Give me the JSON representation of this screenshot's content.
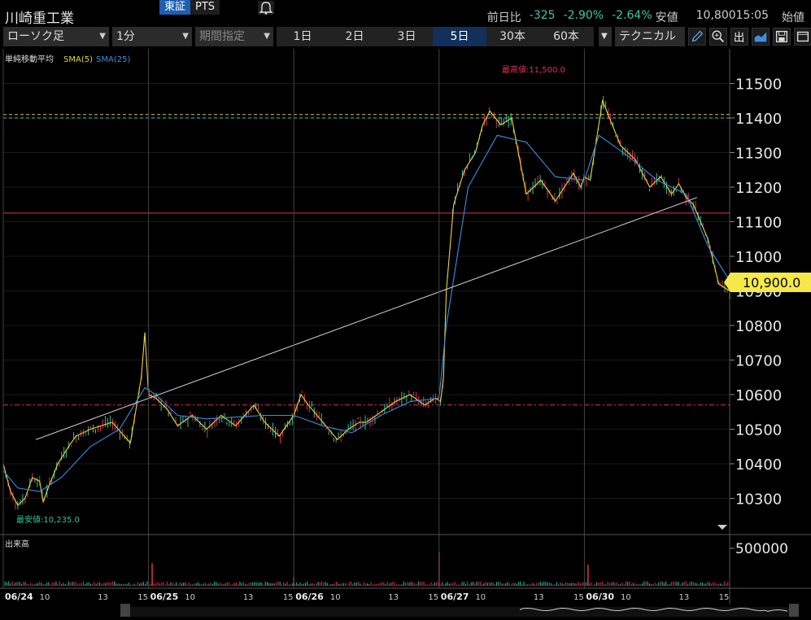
{
  "header": {
    "stock_name": "川崎重工業",
    "exchange_tabs": [
      "東証",
      "PTS"
    ],
    "active_exchange": "東証",
    "stats": {
      "change_label": "前日比",
      "change_value": "-325",
      "change_pct": "-2.90%",
      "change_pct2": "-2.64%",
      "low_label": "安値",
      "low_value": "10,800",
      "time": "15:05",
      "open_label": "始値"
    }
  },
  "toolbar": {
    "chart_type": "ローソク足",
    "interval": "1分",
    "period_select": "期間指定",
    "periods": [
      "1日",
      "2日",
      "3日",
      "5日",
      "30本",
      "60本"
    ],
    "active_period": "5日",
    "technical_label": "テクニカル",
    "icons": [
      "pen-icon",
      "zoom-icon",
      "output-icon",
      "chart-style-icon",
      "save-icon",
      "window-icon"
    ]
  },
  "indicator_legend": {
    "title": "単純移動平均",
    "sma5": "SMA(5)",
    "sma25": "SMA(25)"
  },
  "colors": {
    "sma5": "#e8d53a",
    "sma25": "#3b8fe0",
    "up": "#2ec4a0",
    "down": "#e0305a",
    "price_tag": "#f5e94a",
    "max_label": "#e0305a",
    "min_label": "#2ec4a0"
  },
  "chart_data": {
    "type": "line",
    "ylim": [
      10200,
      11600
    ],
    "y_ticks": [
      10300,
      10400,
      10500,
      10600,
      10700,
      10800,
      10900,
      11000,
      11100,
      11200,
      11300,
      11400,
      11500
    ],
    "x_tick_labels": [
      "06/24",
      "10",
      "13",
      "15",
      "06/25",
      "10",
      "13",
      "15",
      "06/26",
      "10",
      "13",
      "15",
      "06/27",
      "10",
      "13",
      "15",
      "06/30",
      "10",
      "13",
      "15"
    ],
    "current_price": "10,900.0",
    "max_label": "最高値:11,500.0",
    "min_label": "最安値:10,235.0",
    "hlines": [
      {
        "price": 11410,
        "style": "dashed",
        "color": "#c8c840"
      },
      {
        "price": 11400,
        "style": "dashed",
        "color": "#3ec6a8"
      },
      {
        "price": 11125,
        "style": "solid",
        "color": "#e0305a"
      },
      {
        "price": 10570,
        "style": "dashdot",
        "color": "#e0305a"
      }
    ],
    "trendline": [
      [
        0.045,
        10470
      ],
      [
        0.955,
        11170
      ]
    ],
    "series": [
      {
        "name": "SMA(5)",
        "x": [
          0,
          0.01,
          0.02,
          0.03,
          0.04,
          0.05,
          0.055,
          0.06,
          0.075,
          0.09,
          0.1,
          0.12,
          0.15,
          0.175,
          0.19,
          0.195,
          0.2,
          0.2,
          0.21,
          0.225,
          0.24,
          0.26,
          0.28,
          0.3,
          0.32,
          0.345,
          0.36,
          0.38,
          0.4,
          0.41,
          0.42,
          0.44,
          0.46,
          0.475,
          0.49,
          0.5,
          0.52,
          0.54,
          0.56,
          0.58,
          0.595,
          0.602,
          0.606,
          0.61,
          0.62,
          0.635,
          0.65,
          0.66,
          0.67,
          0.685,
          0.7,
          0.72,
          0.74,
          0.76,
          0.785,
          0.795,
          0.8,
          0.808,
          0.825,
          0.85,
          0.87,
          0.89,
          0.905,
          0.92,
          0.93,
          0.94,
          0.95,
          0.97,
          0.985,
          1.0
        ],
        "values": [
          10400,
          10320,
          10280,
          10300,
          10360,
          10350,
          10290,
          10320,
          10400,
          10450,
          10480,
          10500,
          10520,
          10460,
          10650,
          10780,
          10600,
          10600,
          10590,
          10560,
          10510,
          10540,
          10500,
          10540,
          10510,
          10570,
          10520,
          10480,
          10540,
          10600,
          10570,
          10520,
          10470,
          10500,
          10520,
          10520,
          10550,
          10580,
          10600,
          10570,
          10590,
          10580,
          10650,
          10900,
          11150,
          11250,
          11300,
          11380,
          11420,
          11380,
          11400,
          11180,
          11220,
          11160,
          11240,
          11200,
          11230,
          11220,
          11450,
          11320,
          11280,
          11200,
          11230,
          11180,
          11210,
          11170,
          11150,
          11050,
          10920,
          10900
        ]
      },
      {
        "name": "SMA(25)",
        "x": [
          0,
          0.02,
          0.05,
          0.08,
          0.12,
          0.16,
          0.195,
          0.21,
          0.24,
          0.28,
          0.32,
          0.36,
          0.4,
          0.44,
          0.48,
          0.52,
          0.56,
          0.6,
          0.61,
          0.64,
          0.68,
          0.72,
          0.76,
          0.8,
          0.82,
          0.86,
          0.9,
          0.94,
          0.97,
          1.0
        ],
        "values": [
          10380,
          10330,
          10320,
          10360,
          10450,
          10500,
          10620,
          10600,
          10540,
          10530,
          10535,
          10540,
          10540,
          10510,
          10490,
          10540,
          10580,
          10590,
          10800,
          11200,
          11350,
          11330,
          11230,
          11220,
          11350,
          11290,
          11220,
          11180,
          11030,
          10930
        ]
      }
    ],
    "volume": {
      "label": "出来高",
      "y_ticks": [
        500000
      ],
      "ylim": [
        0,
        650000
      ],
      "spikes": [
        [
          0.205,
          300000
        ],
        [
          0.6,
          450000
        ],
        [
          0.805,
          280000
        ],
        [
          0.4,
          120000
        ]
      ]
    }
  }
}
